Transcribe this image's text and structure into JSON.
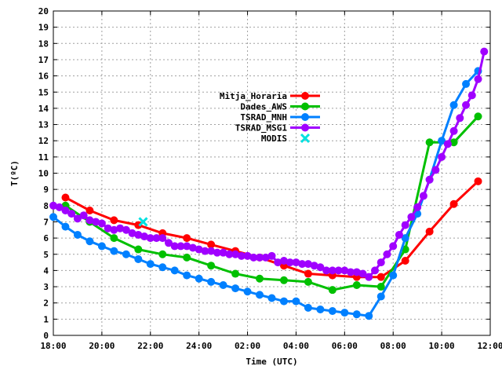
{
  "chart_data": {
    "type": "line",
    "xlabel": "Time (UTC)",
    "ylabel": "T(ºC)",
    "xlim": [
      18,
      36
    ],
    "ylim": [
      0,
      20
    ],
    "x_ticks": [
      {
        "value": 18,
        "label": "18:00"
      },
      {
        "value": 20,
        "label": "20:00"
      },
      {
        "value": 22,
        "label": "22:00"
      },
      {
        "value": 24,
        "label": "24:00"
      },
      {
        "value": 26,
        "label": "02:00"
      },
      {
        "value": 28,
        "label": "04:00"
      },
      {
        "value": 30,
        "label": "06:00"
      },
      {
        "value": 32,
        "label": "08:00"
      },
      {
        "value": 34,
        "label": "10:00"
      },
      {
        "value": 36,
        "label": "12:00"
      }
    ],
    "y_ticks": [
      0,
      1,
      2,
      3,
      4,
      5,
      6,
      7,
      8,
      9,
      10,
      11,
      12,
      13,
      14,
      15,
      16,
      17,
      18,
      19,
      20
    ],
    "grid": true,
    "legend_position": "center-left",
    "series": [
      {
        "name": "Mitja_Horaria",
        "color": "#ff0000",
        "x": [
          18.5,
          19.5,
          20.5,
          21.5,
          22.5,
          23.5,
          24.5,
          25.5,
          26.5,
          27.5,
          28.5,
          29.5,
          30.5,
          31.5,
          32.5,
          33.5,
          34.5,
          35.5
        ],
        "y": [
          8.5,
          7.7,
          7.1,
          6.8,
          6.3,
          6.0,
          5.6,
          5.2,
          4.8,
          4.3,
          3.8,
          3.7,
          3.6,
          3.6,
          4.6,
          6.4,
          8.1,
          9.5
        ]
      },
      {
        "name": "Dades_AWS",
        "color": "#00c000",
        "x": [
          18.5,
          19.5,
          20.5,
          21.5,
          22.5,
          23.5,
          24.5,
          25.5,
          26.5,
          27.5,
          28.5,
          29.5,
          30.5,
          31.5,
          32.5,
          33.5,
          34.5,
          35.5
        ],
        "y": [
          8.0,
          7.0,
          6.0,
          5.3,
          5.0,
          4.8,
          4.3,
          3.8,
          3.5,
          3.4,
          3.3,
          2.8,
          3.1,
          3.0,
          5.3,
          11.9,
          11.9,
          13.5
        ]
      },
      {
        "name": "TSRAD_MNH",
        "color": "#0080ff",
        "x": [
          18.0,
          18.5,
          19.0,
          19.5,
          20.0,
          20.5,
          21.0,
          21.5,
          22.0,
          22.5,
          23.0,
          23.5,
          24.0,
          24.5,
          25.0,
          25.5,
          26.0,
          26.5,
          27.0,
          27.5,
          28.0,
          28.5,
          29.0,
          29.5,
          30.0,
          30.5,
          31.0,
          31.5,
          32.0,
          32.5,
          33.0,
          33.5,
          34.0,
          34.5,
          35.0,
          35.5
        ],
        "y": [
          7.3,
          6.7,
          6.2,
          5.8,
          5.5,
          5.2,
          5.0,
          4.7,
          4.4,
          4.2,
          4.0,
          3.7,
          3.5,
          3.3,
          3.1,
          2.9,
          2.7,
          2.5,
          2.3,
          2.1,
          2.1,
          1.7,
          1.6,
          1.5,
          1.4,
          1.3,
          1.2,
          2.4,
          3.7,
          6.0,
          7.5,
          9.6,
          12.0,
          14.2,
          15.5,
          16.3
        ]
      },
      {
        "name": "TSRAD_MSG1",
        "color": "#a000ff",
        "x": [
          18.0,
          18.25,
          18.5,
          18.75,
          19.0,
          19.25,
          19.5,
          19.75,
          20.0,
          20.25,
          20.5,
          20.75,
          21.0,
          21.25,
          21.5,
          21.75,
          22.0,
          22.25,
          22.5,
          22.75,
          23.0,
          23.25,
          23.5,
          23.75,
          24.0,
          24.25,
          24.5,
          24.75,
          25.0,
          25.25,
          25.5,
          25.75,
          26.0,
          26.25,
          26.5,
          26.75,
          27.0,
          27.25,
          27.5,
          27.75,
          28.0,
          28.25,
          28.5,
          28.75,
          29.0,
          29.25,
          29.5,
          29.75,
          30.0,
          30.25,
          30.5,
          30.75,
          31.0,
          31.25,
          31.5,
          31.75,
          32.0,
          32.25,
          32.5,
          32.75,
          33.0,
          33.25,
          33.5,
          33.75,
          34.0,
          34.25,
          34.5,
          34.75,
          35.0,
          35.25,
          35.5,
          35.75
        ],
        "y": [
          8.0,
          7.9,
          7.7,
          7.5,
          7.2,
          7.4,
          7.1,
          7.0,
          6.9,
          6.6,
          6.5,
          6.6,
          6.5,
          6.3,
          6.2,
          6.1,
          6.0,
          6.0,
          6.0,
          5.7,
          5.5,
          5.5,
          5.5,
          5.4,
          5.3,
          5.2,
          5.2,
          5.1,
          5.1,
          5.0,
          5.0,
          4.9,
          4.9,
          4.8,
          4.8,
          4.8,
          4.9,
          4.5,
          4.6,
          4.5,
          4.5,
          4.4,
          4.4,
          4.3,
          4.2,
          4.0,
          4.0,
          4.0,
          4.0,
          3.9,
          3.9,
          3.8,
          3.6,
          4.0,
          4.5,
          5.0,
          5.5,
          6.2,
          6.8,
          7.3,
          7.9,
          8.6,
          9.6,
          10.2,
          11.0,
          11.8,
          12.6,
          13.4,
          14.2,
          14.8,
          15.8,
          17.5
        ]
      }
    ],
    "points": [
      {
        "name": "MODIS",
        "color": "#00e0e0",
        "marker": "x",
        "x": [
          21.7
        ],
        "y": [
          7.0
        ]
      }
    ]
  }
}
